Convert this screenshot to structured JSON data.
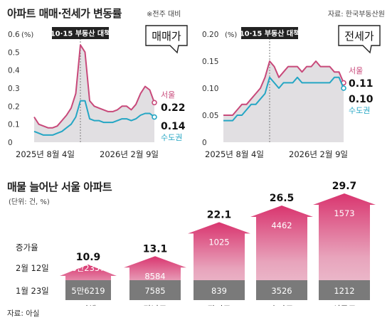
{
  "header": {
    "title": "아파트 매매·전세가 변동률",
    "note": "※전주 대비",
    "source": "자료: 한국부동산원"
  },
  "colors": {
    "seoul": "#c8497a",
    "capital": "#25a6c4",
    "area": "#dcd9dd",
    "marker": "#7a7a7a",
    "dark": "#222222",
    "arrow_top": "#d9356f",
    "arrow_mid": "#e8a4bc",
    "arrow_bottom": "#7a7a7a"
  },
  "chart_data": [
    {
      "type": "line",
      "title": "매매가",
      "annotation": "10·15 부동산 대책",
      "unit": "(%)",
      "ylim": [
        0,
        0.6
      ],
      "yticks": [
        "0.6",
        "0.5",
        "0.4",
        "0.3",
        "0.2",
        "0.1",
        "0"
      ],
      "x_start_label": "2025년 8월 4일",
      "x_end_label": "2026년 2월 9일",
      "series": [
        {
          "name": "서울",
          "last_label": "0.22",
          "values": [
            0.14,
            0.1,
            0.09,
            0.08,
            0.08,
            0.09,
            0.12,
            0.15,
            0.19,
            0.27,
            0.54,
            0.5,
            0.23,
            0.2,
            0.19,
            0.18,
            0.17,
            0.17,
            0.18,
            0.2,
            0.2,
            0.18,
            0.21,
            0.27,
            0.31,
            0.29,
            0.22
          ]
        },
        {
          "name": "수도권",
          "last_label": "0.14",
          "values": [
            0.06,
            0.05,
            0.04,
            0.04,
            0.04,
            0.05,
            0.06,
            0.08,
            0.1,
            0.14,
            0.23,
            0.23,
            0.13,
            0.12,
            0.12,
            0.11,
            0.11,
            0.11,
            0.12,
            0.13,
            0.13,
            0.12,
            0.13,
            0.15,
            0.16,
            0.16,
            0.14
          ]
        }
      ],
      "marker_index": 10
    },
    {
      "type": "line",
      "title": "전세가",
      "annotation": "10·15 부동산 대책",
      "unit": "(%)",
      "ylim": [
        0,
        0.2
      ],
      "yticks": [
        "0.20",
        "0.15",
        "0.10",
        "0.05",
        "0"
      ],
      "x_start_label": "2025년 8월 4일",
      "x_end_label": "2026년 2월 9일",
      "series": [
        {
          "name": "서울",
          "last_label": "0.11",
          "values": [
            0.05,
            0.05,
            0.05,
            0.06,
            0.07,
            0.07,
            0.08,
            0.09,
            0.1,
            0.12,
            0.15,
            0.14,
            0.12,
            0.13,
            0.14,
            0.14,
            0.14,
            0.13,
            0.14,
            0.14,
            0.15,
            0.14,
            0.14,
            0.14,
            0.13,
            0.13,
            0.11
          ]
        },
        {
          "name": "수도권",
          "last_label": "0.10",
          "values": [
            0.04,
            0.04,
            0.04,
            0.05,
            0.05,
            0.06,
            0.07,
            0.07,
            0.08,
            0.09,
            0.12,
            0.11,
            0.1,
            0.11,
            0.11,
            0.11,
            0.12,
            0.11,
            0.11,
            0.11,
            0.11,
            0.11,
            0.11,
            0.11,
            0.12,
            0.12,
            0.1
          ]
        }
      ],
      "marker_index": 10
    },
    {
      "type": "bar",
      "title": "매물 늘어난 서울 아파트",
      "unit": "(단위: 건, %)",
      "row_labels": {
        "rate": "증가율",
        "after": "2월 12일",
        "before": "1월 23일"
      },
      "categories": [
        "전체",
        "강남구",
        "광진구",
        "송파구",
        "성동구"
      ],
      "growth": [
        10.9,
        13.1,
        22.1,
        26.5,
        29.7
      ],
      "growth_labels": [
        "10.9",
        "13.1",
        "22.1",
        "26.5",
        "29.7"
      ],
      "after_labels": [
        "6만2357",
        "8584",
        "1025",
        "4462",
        "1573"
      ],
      "before_labels": [
        "5만6219",
        "7585",
        "839",
        "3526",
        "1212"
      ]
    }
  ],
  "footer": {
    "source": "자료: 아실"
  }
}
